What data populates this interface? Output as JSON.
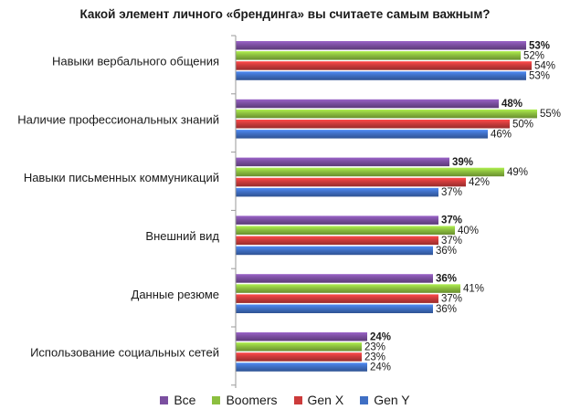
{
  "chart_data": {
    "type": "bar",
    "orientation": "horizontal",
    "title": "Какой элемент личного «брендинга» вы считаете самым важным?",
    "categories": [
      "Навыки вербального общения",
      "Наличие профессиональных знаний",
      "Навыки письменных коммуникаций",
      "Внешний вид",
      "Данные резюме",
      "Использование социальных сетей"
    ],
    "series": [
      {
        "name": "Все",
        "color": "#7b4fa0",
        "values": [
          53,
          48,
          39,
          37,
          36,
          24
        ],
        "labels": [
          "53%",
          "48%",
          "39%",
          "37%",
          "36%",
          "24%"
        ],
        "bold": true
      },
      {
        "name": "Boomers",
        "color": "#8cbf3f",
        "values": [
          52,
          55,
          49,
          40,
          41,
          23
        ],
        "labels": [
          "52%",
          "55%",
          "49%",
          "40%",
          "41%",
          "23%"
        ],
        "bold": false
      },
      {
        "name": "Gen X",
        "color": "#cc3b3b",
        "values": [
          54,
          50,
          42,
          37,
          37,
          23
        ],
        "labels": [
          "54%",
          "50%",
          "42%",
          "37%",
          "37%",
          "23%"
        ],
        "bold": false
      },
      {
        "name": "Gen Y",
        "color": "#3f6fc4",
        "values": [
          53,
          46,
          37,
          36,
          36,
          24
        ],
        "labels": [
          "53%",
          "46%",
          "37%",
          "36%",
          "36%",
          "24%"
        ],
        "bold": false
      }
    ],
    "legend_position": "bottom",
    "grid": false
  }
}
